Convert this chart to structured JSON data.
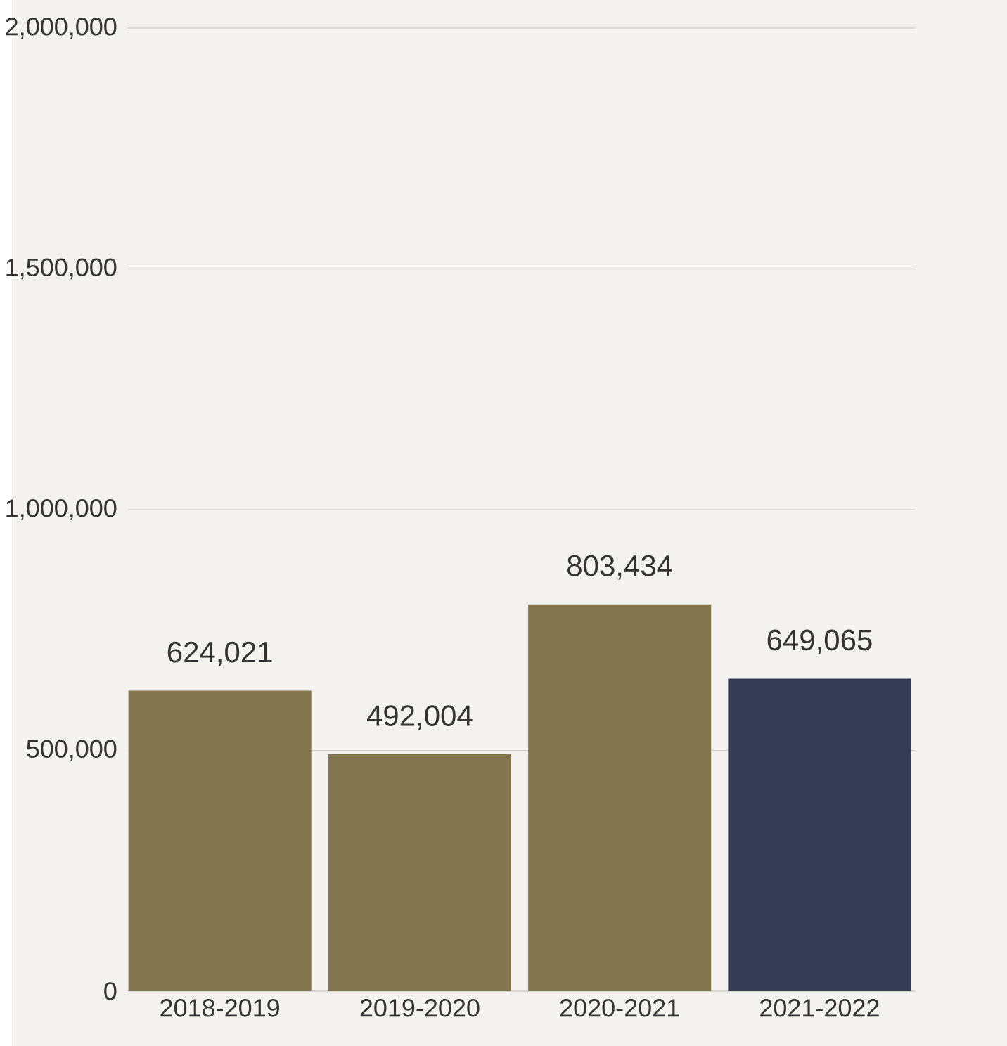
{
  "chart_data": {
    "type": "bar",
    "categories": [
      "2018-2019",
      "2019-2020",
      "2020-2021",
      "2021-2022"
    ],
    "values": [
      624021,
      492004,
      803434,
      649065
    ],
    "value_labels": [
      "624,021",
      "492,004",
      "803,434",
      "649,065"
    ],
    "colors": [
      "#83764f",
      "#83764f",
      "#83764f",
      "#353b55"
    ],
    "ylim": [
      0,
      2000000
    ],
    "yticks": [
      {
        "value": 0,
        "label": "0"
      },
      {
        "value": 500000,
        "label": "500,000"
      },
      {
        "value": 1000000,
        "label": "1,000,000"
      },
      {
        "value": 1500000,
        "label": "1,500,000"
      },
      {
        "value": 2000000,
        "label": "2,000,000"
      }
    ],
    "grid": "y"
  }
}
